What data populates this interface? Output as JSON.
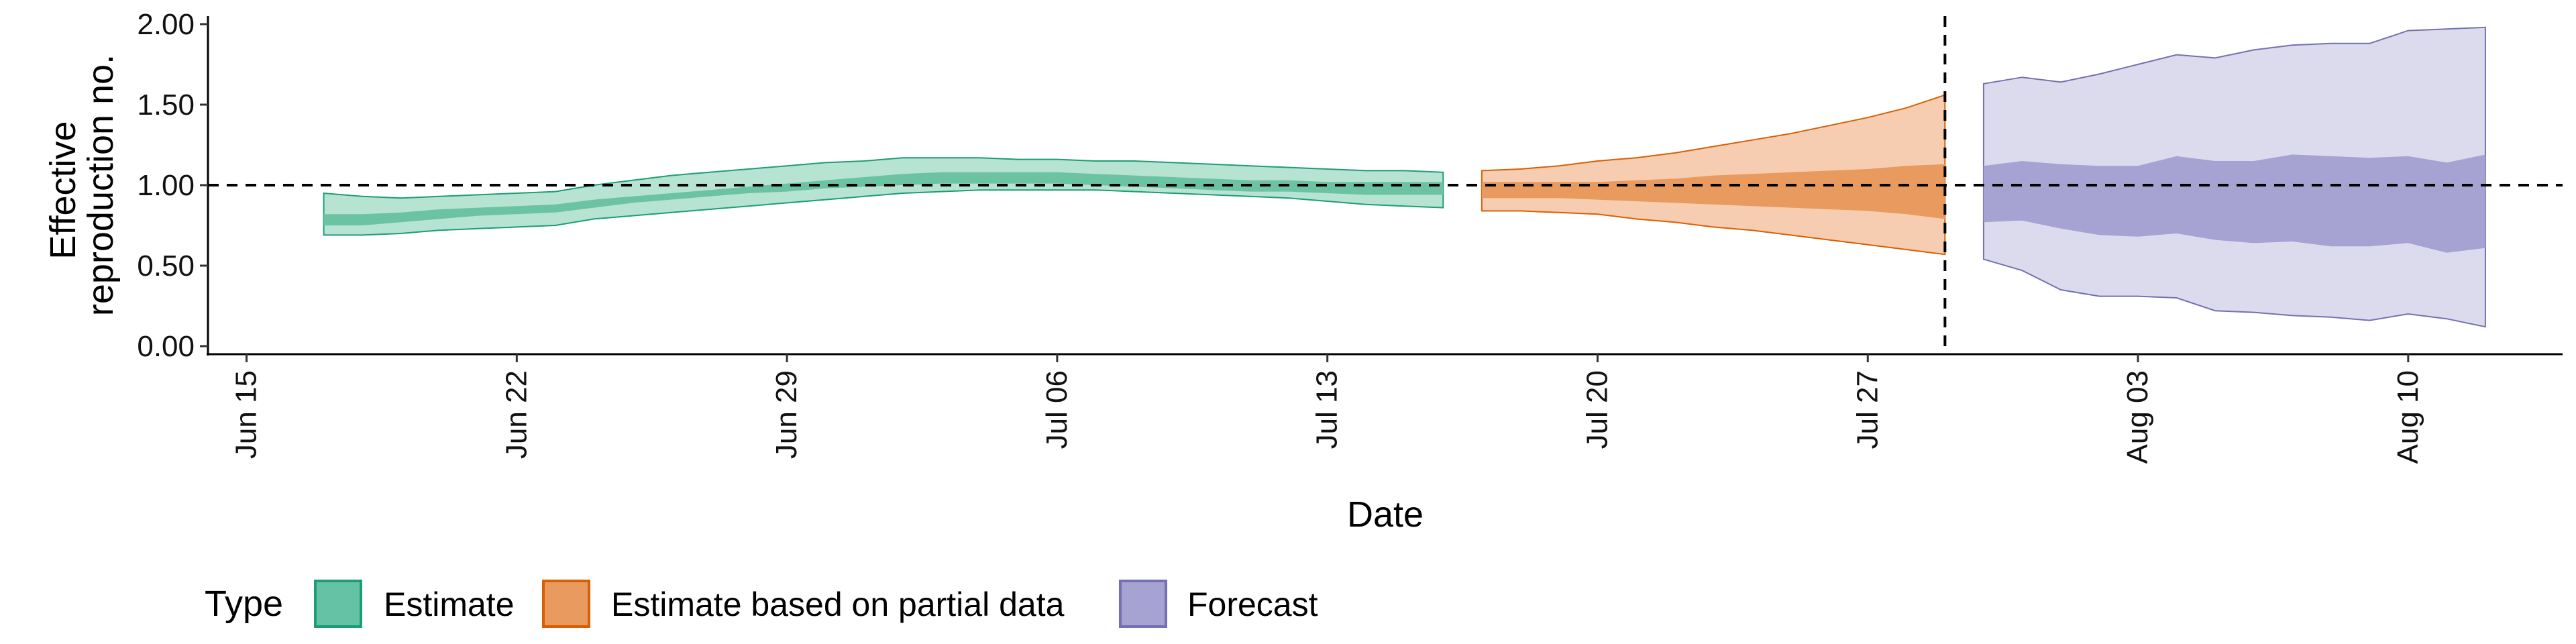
{
  "chart_data": {
    "type": "area",
    "xlabel": "Date",
    "ylabel_lines": [
      "Effective",
      "reproduction no."
    ],
    "ylim": [
      -0.05,
      2.05
    ],
    "y_ticks": [
      "0.00",
      "0.50",
      "1.00",
      "1.50",
      "2.00"
    ],
    "y_tick_values": [
      0,
      0.5,
      1.0,
      1.5,
      2.0
    ],
    "x_range": [
      "2020-06-14",
      "2020-08-14"
    ],
    "x_ticks": [
      "Jun 15",
      "Jun 22",
      "Jun 29",
      "Jul 06",
      "Jul 13",
      "Jul 20",
      "Jul 27",
      "Aug 03",
      "Aug 10"
    ],
    "x_tick_dates": [
      "2020-06-15",
      "2020-06-22",
      "2020-06-29",
      "2020-07-06",
      "2020-07-13",
      "2020-07-20",
      "2020-07-27",
      "2020-08-03",
      "2020-08-10"
    ],
    "reference_hline": 1.0,
    "reference_vline": "2020-07-29",
    "grid": false,
    "legend_placement": "bottom-left",
    "legend": {
      "title": "Type",
      "entries": [
        {
          "label": "Estimate",
          "fill": "#66c2a5",
          "stroke": "#1b9e77"
        },
        {
          "label": "Estimate based on partial data",
          "fill": "#e89a5f",
          "stroke": "#d95f02"
        },
        {
          "label": "Forecast",
          "fill": "#a6a3d3",
          "stroke": "#7570b3"
        }
      ]
    },
    "series": [
      {
        "name": "Estimate",
        "outer_fill": "#b7e3d2",
        "inner_fill": "#6cc3a4",
        "stroke": "#1b9e77",
        "dates": [
          "2020-06-17",
          "2020-06-18",
          "2020-06-19",
          "2020-06-20",
          "2020-06-21",
          "2020-06-22",
          "2020-06-23",
          "2020-06-24",
          "2020-06-25",
          "2020-06-26",
          "2020-06-27",
          "2020-06-28",
          "2020-06-29",
          "2020-06-30",
          "2020-07-01",
          "2020-07-02",
          "2020-07-03",
          "2020-07-04",
          "2020-07-05",
          "2020-07-06",
          "2020-07-07",
          "2020-07-08",
          "2020-07-09",
          "2020-07-10",
          "2020-07-11",
          "2020-07-12",
          "2020-07-13",
          "2020-07-14",
          "2020-07-15",
          "2020-07-16"
        ],
        "outer_lower": [
          0.69,
          0.69,
          0.7,
          0.72,
          0.73,
          0.74,
          0.75,
          0.79,
          0.81,
          0.83,
          0.85,
          0.87,
          0.89,
          0.91,
          0.93,
          0.95,
          0.96,
          0.97,
          0.97,
          0.97,
          0.97,
          0.96,
          0.95,
          0.94,
          0.93,
          0.92,
          0.9,
          0.88,
          0.87,
          0.86
        ],
        "inner_lower": [
          0.75,
          0.75,
          0.77,
          0.79,
          0.81,
          0.82,
          0.83,
          0.86,
          0.89,
          0.91,
          0.93,
          0.95,
          0.96,
          0.98,
          0.99,
          1.0,
          1.01,
          1.01,
          1.01,
          1.01,
          1.0,
          0.99,
          0.98,
          0.97,
          0.96,
          0.96,
          0.95,
          0.94,
          0.94,
          0.94
        ],
        "inner_upper": [
          0.82,
          0.82,
          0.83,
          0.85,
          0.86,
          0.87,
          0.88,
          0.91,
          0.93,
          0.95,
          0.97,
          0.99,
          1.01,
          1.03,
          1.05,
          1.07,
          1.08,
          1.08,
          1.08,
          1.08,
          1.07,
          1.06,
          1.05,
          1.04,
          1.03,
          1.03,
          1.02,
          1.02,
          1.02,
          1.02
        ],
        "outer_upper": [
          0.95,
          0.93,
          0.92,
          0.93,
          0.94,
          0.95,
          0.96,
          1.0,
          1.03,
          1.06,
          1.08,
          1.1,
          1.12,
          1.14,
          1.15,
          1.17,
          1.17,
          1.17,
          1.16,
          1.16,
          1.15,
          1.15,
          1.14,
          1.13,
          1.12,
          1.11,
          1.1,
          1.09,
          1.09,
          1.08
        ]
      },
      {
        "name": "Estimate based on partial data",
        "outer_fill": "#f6cdb0",
        "inner_fill": "#e89a5f",
        "stroke": "#d95f02",
        "dates": [
          "2020-07-17",
          "2020-07-18",
          "2020-07-19",
          "2020-07-20",
          "2020-07-21",
          "2020-07-22",
          "2020-07-23",
          "2020-07-24",
          "2020-07-25",
          "2020-07-26",
          "2020-07-27",
          "2020-07-28",
          "2020-07-29"
        ],
        "outer_lower": [
          0.84,
          0.84,
          0.83,
          0.82,
          0.79,
          0.77,
          0.74,
          0.72,
          0.69,
          0.66,
          0.63,
          0.6,
          0.57
        ],
        "inner_lower": [
          0.92,
          0.92,
          0.92,
          0.91,
          0.9,
          0.89,
          0.88,
          0.87,
          0.86,
          0.85,
          0.84,
          0.82,
          0.79
        ],
        "inner_upper": [
          1.02,
          1.02,
          1.02,
          1.02,
          1.03,
          1.04,
          1.06,
          1.07,
          1.08,
          1.09,
          1.1,
          1.12,
          1.13
        ],
        "outer_upper": [
          1.09,
          1.1,
          1.12,
          1.15,
          1.17,
          1.2,
          1.24,
          1.28,
          1.32,
          1.37,
          1.42,
          1.48,
          1.56
        ]
      },
      {
        "name": "Forecast",
        "outer_fill": "#dcdbed",
        "inner_fill": "#a6a3d3",
        "stroke": "#7570b3",
        "dates": [
          "2020-07-30",
          "2020-07-31",
          "2020-08-01",
          "2020-08-02",
          "2020-08-03",
          "2020-08-04",
          "2020-08-05",
          "2020-08-06",
          "2020-08-07",
          "2020-08-08",
          "2020-08-09",
          "2020-08-10",
          "2020-08-11",
          "2020-08-12"
        ],
        "outer_lower": [
          0.54,
          0.47,
          0.35,
          0.31,
          0.31,
          0.3,
          0.22,
          0.21,
          0.19,
          0.18,
          0.16,
          0.2,
          0.17,
          0.12
        ],
        "inner_lower": [
          0.77,
          0.78,
          0.73,
          0.69,
          0.68,
          0.7,
          0.66,
          0.64,
          0.65,
          0.62,
          0.62,
          0.64,
          0.58,
          0.61
        ],
        "inner_upper": [
          1.12,
          1.15,
          1.13,
          1.12,
          1.12,
          1.18,
          1.15,
          1.15,
          1.19,
          1.18,
          1.17,
          1.18,
          1.14,
          1.19
        ],
        "outer_upper": [
          1.63,
          1.67,
          1.64,
          1.69,
          1.75,
          1.81,
          1.79,
          1.84,
          1.87,
          1.88,
          1.88,
          1.96,
          1.97,
          1.98
        ]
      }
    ]
  }
}
